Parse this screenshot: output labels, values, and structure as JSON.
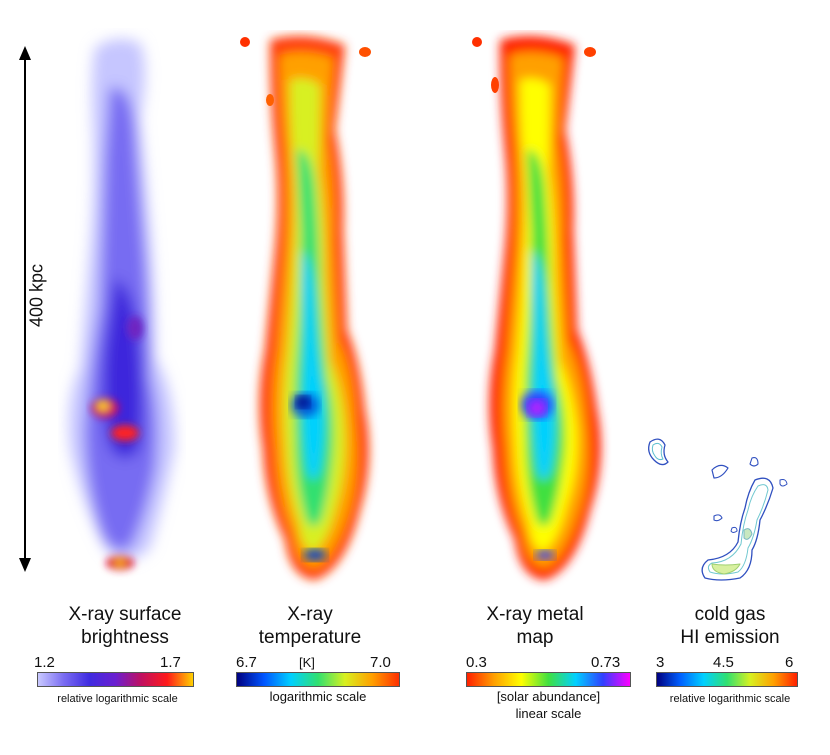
{
  "scale_bar": {
    "label": "400 kpc"
  },
  "panels": [
    {
      "title_line1": "X-ray surface",
      "title_line2": "brightness",
      "colorbar": {
        "min": "1.2",
        "max": "1.7",
        "mid": "",
        "unit": "",
        "note": "relative logarithmic scale",
        "note2": ""
      },
      "colormap": [
        "#c9c9ff",
        "#7a6cf2",
        "#3f2be0",
        "#6a1fd0",
        "#c01060",
        "#ff1a1a",
        "#ffd000"
      ]
    },
    {
      "title_line1": "X-ray",
      "title_line2": "temperature",
      "colorbar": {
        "min": "6.7",
        "max": "7.0",
        "mid": "",
        "unit": "[K]",
        "note": "logarithmic scale",
        "note2": ""
      },
      "colormap": [
        "#000080",
        "#0055ff",
        "#00d0ff",
        "#30e070",
        "#d8f020",
        "#ffa000",
        "#ff3000"
      ]
    },
    {
      "title_line1": "X-ray metal",
      "title_line2": "map",
      "colorbar": {
        "min": "0.3",
        "max": "0.73",
        "mid": "",
        "unit": "",
        "note": "[solar abundance]",
        "note2": "linear scale"
      },
      "colormap": [
        "#ff2000",
        "#ffa000",
        "#ffff00",
        "#40e040",
        "#00d0ff",
        "#3040ff",
        "#ff00ff"
      ]
    },
    {
      "title_line1": "cold gas",
      "title_line2": "HI emission",
      "colorbar": {
        "min": "3",
        "max": "6",
        "mid": "4.5",
        "unit": "",
        "note": "relative logarithmic scale",
        "note2": ""
      },
      "colormap": [
        "#000080",
        "#0060ff",
        "#00d0ff",
        "#30e070",
        "#d8f020",
        "#ffa000",
        "#ff2000"
      ]
    }
  ]
}
